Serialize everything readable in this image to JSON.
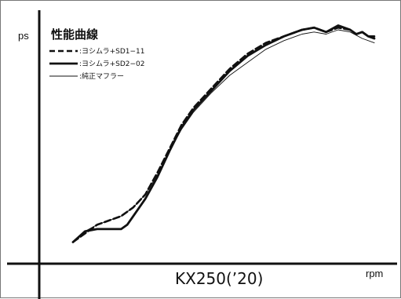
{
  "chart_data": {
    "type": "line",
    "title": "性能曲線",
    "ylabel": "ps",
    "xlabel": "rpm",
    "model_label": "KX250(’20)",
    "ylim": [
      0,
      100
    ],
    "xlim": [
      0,
      100
    ],
    "grid": false,
    "legend_position": "top-left",
    "series": [
      {
        "name": "ヨシムラ+SD1−11",
        "style": "dashed",
        "color": "#111111",
        "x": [
          0,
          4,
          8,
          12,
          16,
          20,
          24,
          28,
          32,
          36,
          40,
          46,
          52,
          58,
          64,
          70,
          76,
          80,
          84,
          88,
          92,
          94,
          96,
          98,
          100
        ],
        "y": [
          2,
          6,
          10,
          12,
          14,
          18,
          24,
          34,
          45,
          56,
          64,
          73,
          82,
          89,
          94,
          97,
          100,
          101,
          99,
          101,
          100,
          98,
          99,
          97,
          97
        ]
      },
      {
        "name": "ヨシムラ+SD2−02",
        "style": "solid-thick",
        "color": "#111111",
        "x": [
          0,
          4,
          8,
          12,
          16,
          18,
          20,
          24,
          28,
          32,
          36,
          40,
          46,
          52,
          58,
          64,
          70,
          76,
          80,
          84,
          88,
          92,
          94,
          96,
          98,
          100
        ],
        "y": [
          2,
          7,
          8,
          8,
          8,
          10,
          14,
          22,
          32,
          44,
          55,
          63,
          72,
          81,
          88,
          93,
          97,
          100,
          101,
          99,
          102,
          100,
          98,
          99,
          97,
          96
        ]
      },
      {
        "name": "純正マフラー",
        "style": "solid-thin",
        "color": "#111111",
        "x": [
          0,
          4,
          8,
          12,
          16,
          20,
          24,
          28,
          32,
          36,
          40,
          46,
          52,
          58,
          64,
          70,
          76,
          80,
          84,
          88,
          92,
          96,
          100
        ],
        "y": [
          2,
          7,
          10,
          12,
          14,
          18,
          24,
          33,
          44,
          54,
          62,
          71,
          79,
          85,
          91,
          95,
          98,
          99,
          98,
          100,
          99,
          96,
          94
        ]
      }
    ]
  }
}
